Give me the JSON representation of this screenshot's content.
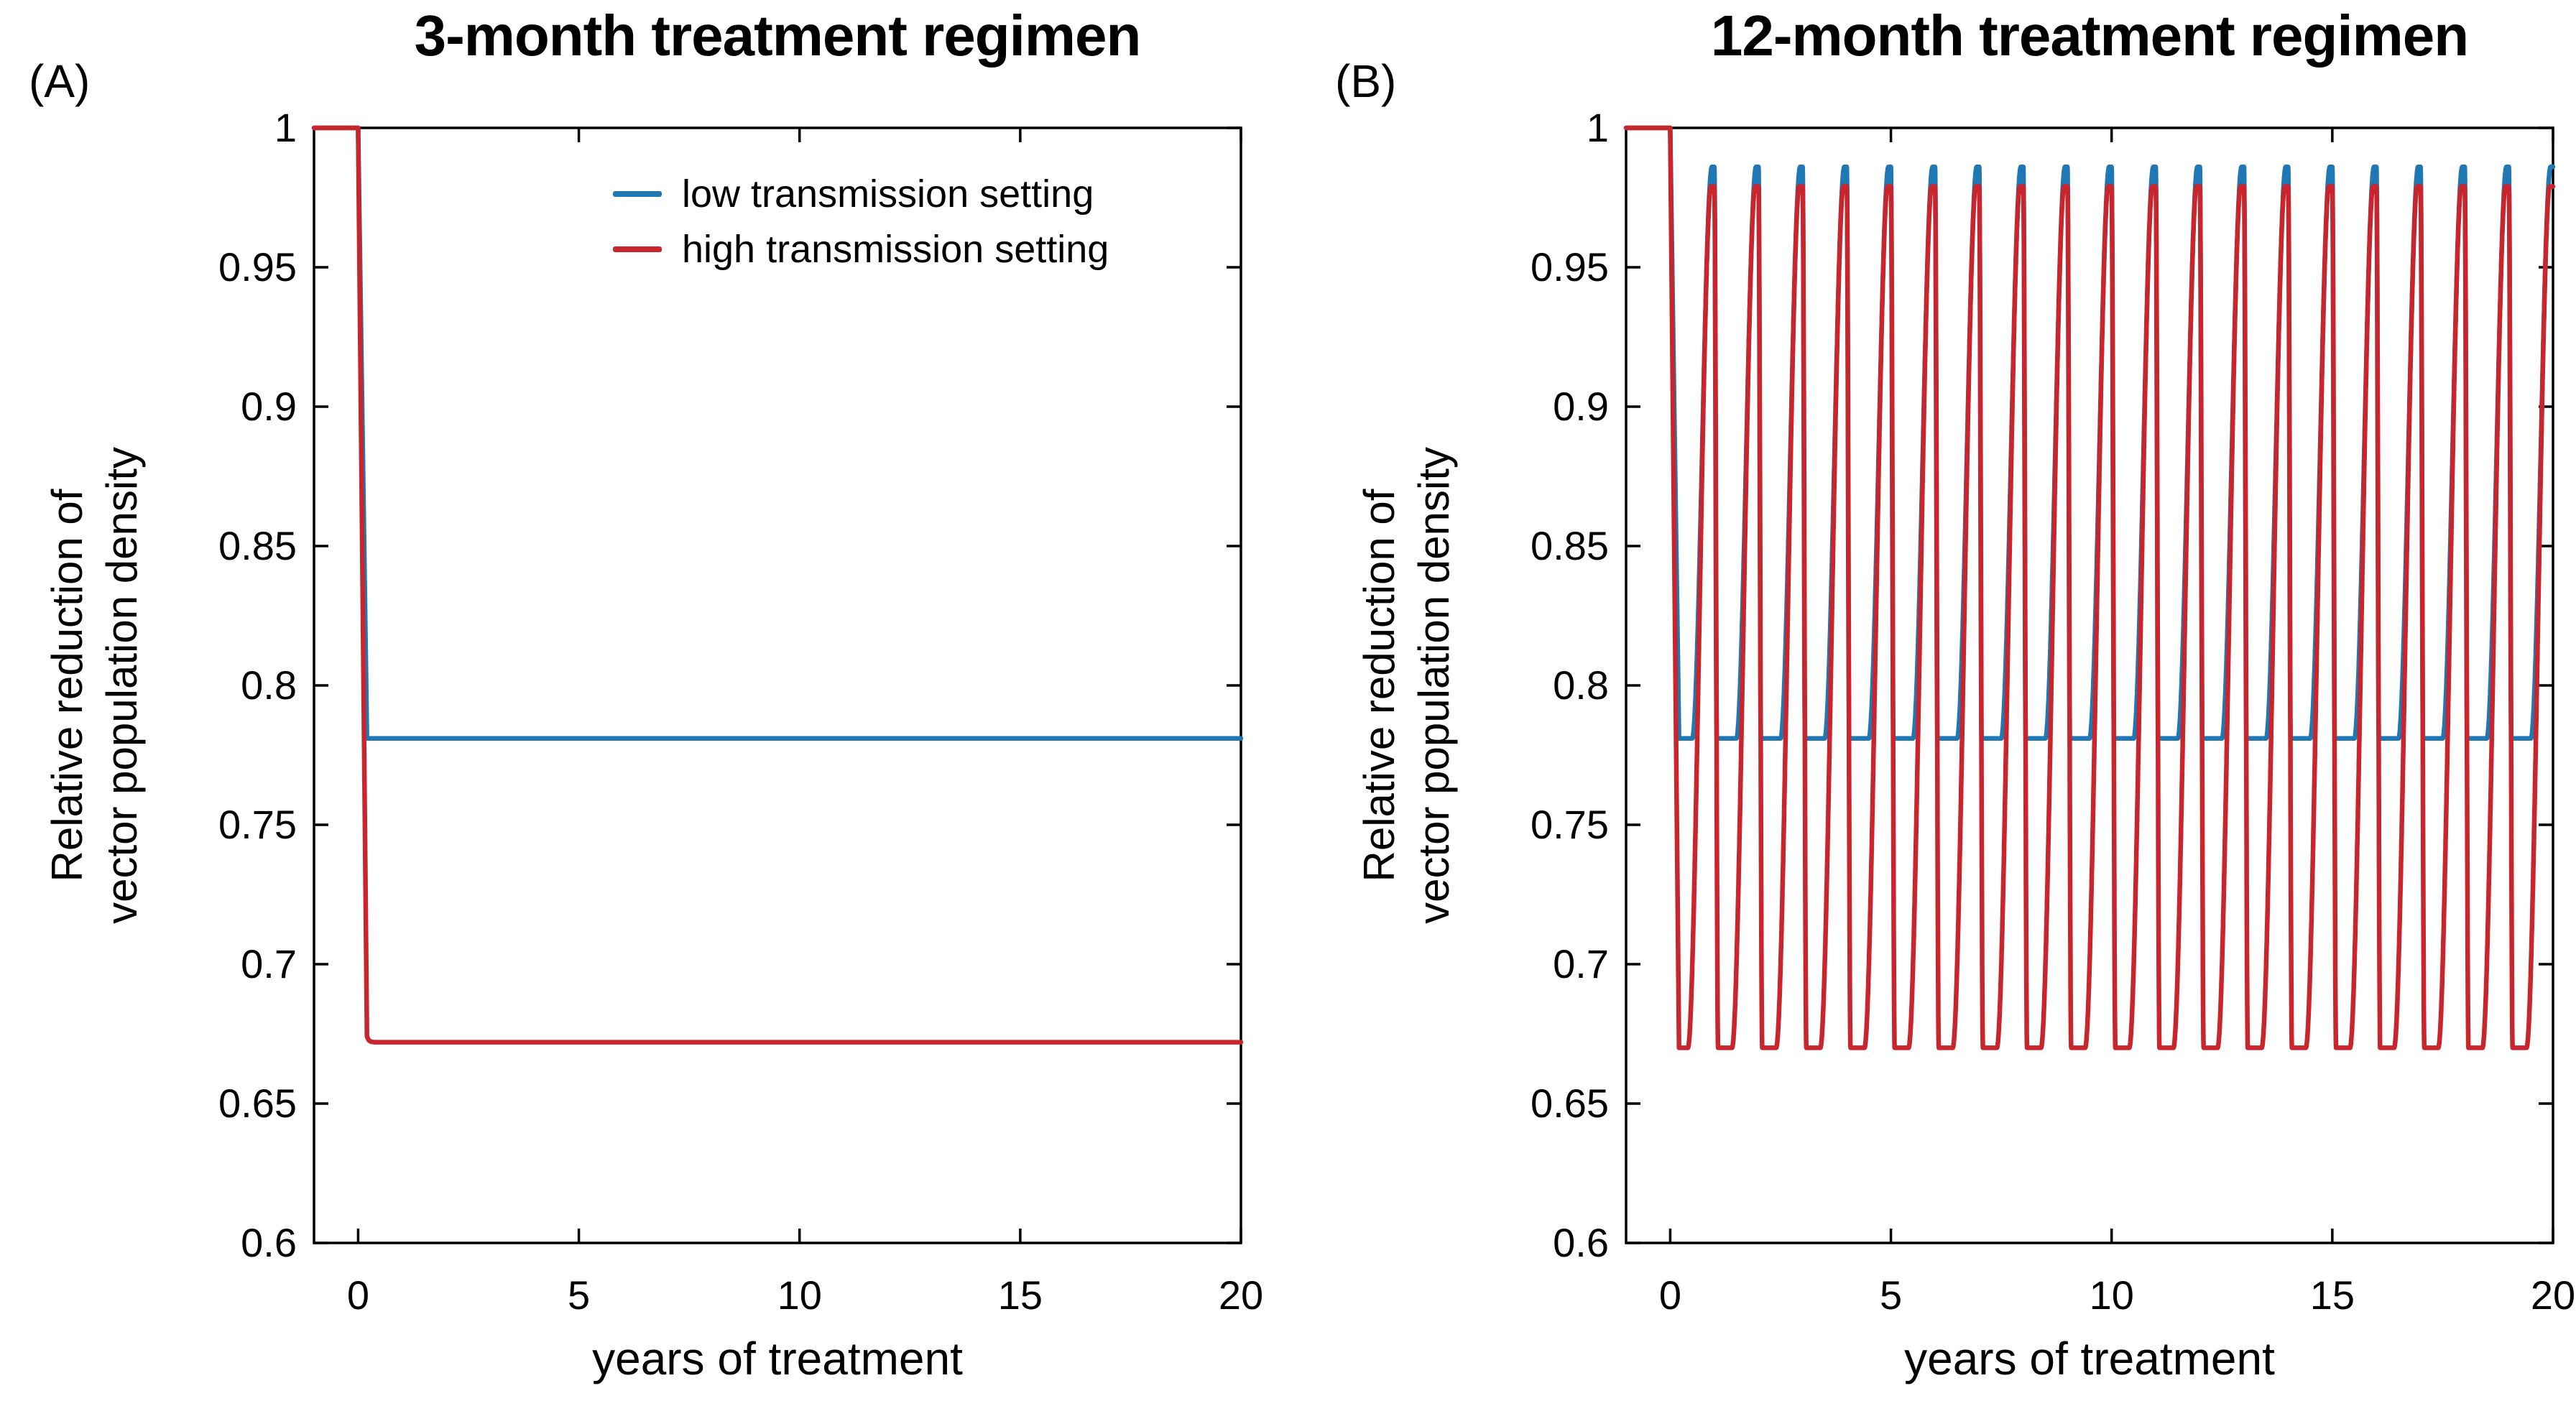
{
  "page": {
    "background": "#ffffff"
  },
  "panels": [
    {
      "corner_label": "(A)",
      "title": "3-month treatment regimen",
      "xlabel": "years of treatment",
      "ylabel_lines": [
        "Relative reduction of",
        "vector population density"
      ]
    },
    {
      "corner_label": "(B)",
      "title": "12-month treatment regimen",
      "xlabel": "years of treatment",
      "ylabel_lines": [
        "Relative reduction of",
        "vector population density"
      ]
    }
  ],
  "legend": {
    "panel": "A",
    "entries": [
      {
        "label": "low transmission setting",
        "color": "#1f77b4"
      },
      {
        "label": "high transmission setting",
        "color": "#c8252d"
      }
    ]
  },
  "chart_data": [
    {
      "type": "line",
      "panel_id": "A",
      "title": "3-month treatment regimen",
      "xlabel": "years of treatment",
      "ylabel": "Relative reduction of vector population density",
      "xlim": [
        -1,
        20
      ],
      "ylim": [
        0.6,
        1.0
      ],
      "xticks": [
        0,
        5,
        10,
        15,
        20
      ],
      "xtick_labels": [
        "0",
        "5",
        "10",
        "15",
        "20"
      ],
      "yticks": [
        0.6,
        0.65,
        0.7,
        0.75,
        0.8,
        0.85,
        0.9,
        0.95,
        1
      ],
      "ytick_labels": [
        "0.6",
        "0.65",
        "0.7",
        "0.75",
        "0.8",
        "0.85",
        "0.9",
        "0.95",
        "1"
      ],
      "grid": false,
      "legend_position": "upper-right-inside",
      "treatment_interval_months": 3,
      "axis_color": "#000000",
      "series": [
        {
          "name": "low transmission setting",
          "color": "#1f77b4",
          "model": "exponential_drop",
          "baseline": 1.0,
          "drop_start_year": 0,
          "steady_state": 0.781,
          "decay_tau_years": 0.022
        },
        {
          "name": "high transmission setting",
          "color": "#c8252d",
          "model": "exponential_drop",
          "baseline": 1.0,
          "drop_start_year": 0,
          "steady_state": 0.672,
          "decay_tau_years": 0.04
        }
      ]
    },
    {
      "type": "line",
      "panel_id": "B",
      "title": "12-month treatment regimen",
      "xlabel": "years of treatment",
      "ylabel": "Relative reduction of vector population density",
      "xlim": [
        -1,
        20
      ],
      "ylim": [
        0.6,
        1.0
      ],
      "xticks": [
        0,
        5,
        10,
        15,
        20
      ],
      "xtick_labels": [
        "0",
        "5",
        "10",
        "15",
        "20"
      ],
      "yticks": [
        0.6,
        0.65,
        0.7,
        0.75,
        0.8,
        0.85,
        0.9,
        0.95,
        1
      ],
      "ytick_labels": [
        "0.6",
        "0.65",
        "0.7",
        "0.75",
        "0.8",
        "0.85",
        "0.9",
        "0.95",
        "1"
      ],
      "grid": false,
      "legend_position": "none",
      "treatment_interval_months": 12,
      "axis_color": "#000000",
      "series": [
        {
          "name": "low transmission setting",
          "color": "#1f77b4",
          "model": "annual_relapse_cycle",
          "baseline": 1.0,
          "period_years": 1,
          "trough": 0.781,
          "peak": 0.986,
          "fall_frac": 0.055,
          "trough_end_frac": 0.5,
          "rise_end_frac": 0.945
        },
        {
          "name": "high transmission setting",
          "color": "#c8252d",
          "model": "annual_relapse_cycle",
          "baseline": 1.0,
          "period_years": 1,
          "trough": 0.67,
          "peak": 0.979,
          "fall_frac": 0.085,
          "trough_end_frac": 0.4,
          "rise_end_frac": 0.925
        }
      ]
    }
  ]
}
